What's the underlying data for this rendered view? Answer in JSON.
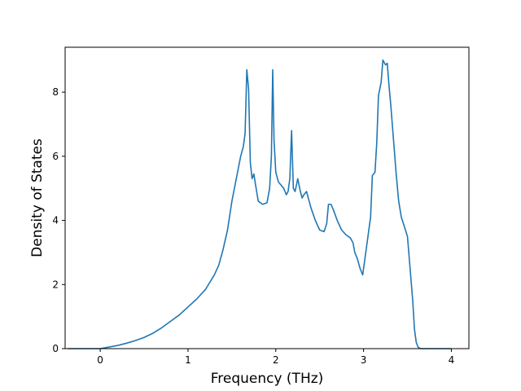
{
  "chart_data": {
    "type": "line",
    "title": "",
    "xlabel": "Frequency (THz)",
    "ylabel": "Density of States",
    "xlim": [
      -0.4,
      4.2
    ],
    "ylim": [
      0,
      9.4
    ],
    "xticks": [
      0,
      1,
      2,
      3,
      4
    ],
    "yticks": [
      0,
      2,
      4,
      6,
      8
    ],
    "xtick_labels": [
      "0",
      "1",
      "2",
      "3",
      "4"
    ],
    "ytick_labels": [
      "0",
      "2",
      "4",
      "6",
      "8"
    ],
    "grid": false,
    "legend": "none",
    "line_color": "#1f77b4",
    "series": [
      {
        "x": [
          -0.37,
          0.0,
          0.1,
          0.2,
          0.3,
          0.4,
          0.5,
          0.6,
          0.7,
          0.8,
          0.9,
          1.0,
          1.1,
          1.2,
          1.3,
          1.35,
          1.4,
          1.45,
          1.5,
          1.55,
          1.6,
          1.63,
          1.65,
          1.67,
          1.69,
          1.71,
          1.73,
          1.75,
          1.77,
          1.8,
          1.85,
          1.9,
          1.93,
          1.95,
          1.965,
          1.98,
          2.0,
          2.03,
          2.06,
          2.09,
          2.12,
          2.14,
          2.16,
          2.18,
          2.2,
          2.22,
          2.25,
          2.28,
          2.3,
          2.32,
          2.35,
          2.38,
          2.4,
          2.45,
          2.5,
          2.55,
          2.58,
          2.6,
          2.63,
          2.66,
          2.7,
          2.75,
          2.8,
          2.85,
          2.88,
          2.9,
          2.93,
          2.96,
          2.99,
          3.02,
          3.05,
          3.08,
          3.1,
          3.13,
          3.15,
          3.17,
          3.2,
          3.22,
          3.25,
          3.27,
          3.29,
          3.31,
          3.33,
          3.35,
          3.37,
          3.4,
          3.43,
          3.46,
          3.5,
          3.53,
          3.56,
          3.58,
          3.6,
          3.62,
          3.65,
          3.7,
          3.8,
          4.0
        ],
        "y": [
          0.0,
          0.0,
          0.05,
          0.1,
          0.17,
          0.25,
          0.35,
          0.48,
          0.65,
          0.85,
          1.05,
          1.3,
          1.55,
          1.85,
          2.3,
          2.6,
          3.1,
          3.7,
          4.6,
          5.3,
          6.0,
          6.3,
          6.7,
          8.7,
          8.1,
          5.8,
          5.3,
          5.45,
          5.1,
          4.6,
          4.5,
          4.55,
          5.0,
          6.0,
          8.7,
          6.5,
          5.5,
          5.2,
          5.1,
          5.0,
          4.8,
          4.9,
          5.3,
          6.8,
          5.0,
          4.9,
          5.3,
          4.9,
          4.7,
          4.8,
          4.9,
          4.6,
          4.4,
          4.0,
          3.7,
          3.65,
          3.9,
          4.5,
          4.5,
          4.3,
          4.0,
          3.7,
          3.55,
          3.45,
          3.3,
          3.0,
          2.8,
          2.5,
          2.3,
          2.9,
          3.5,
          4.1,
          5.4,
          5.5,
          6.4,
          7.9,
          8.3,
          9.0,
          8.85,
          8.9,
          8.2,
          7.6,
          6.9,
          6.2,
          5.5,
          4.6,
          4.1,
          3.85,
          3.5,
          2.5,
          1.5,
          0.6,
          0.2,
          0.05,
          0.0,
          0.0,
          0.0,
          0.0
        ]
      }
    ]
  }
}
